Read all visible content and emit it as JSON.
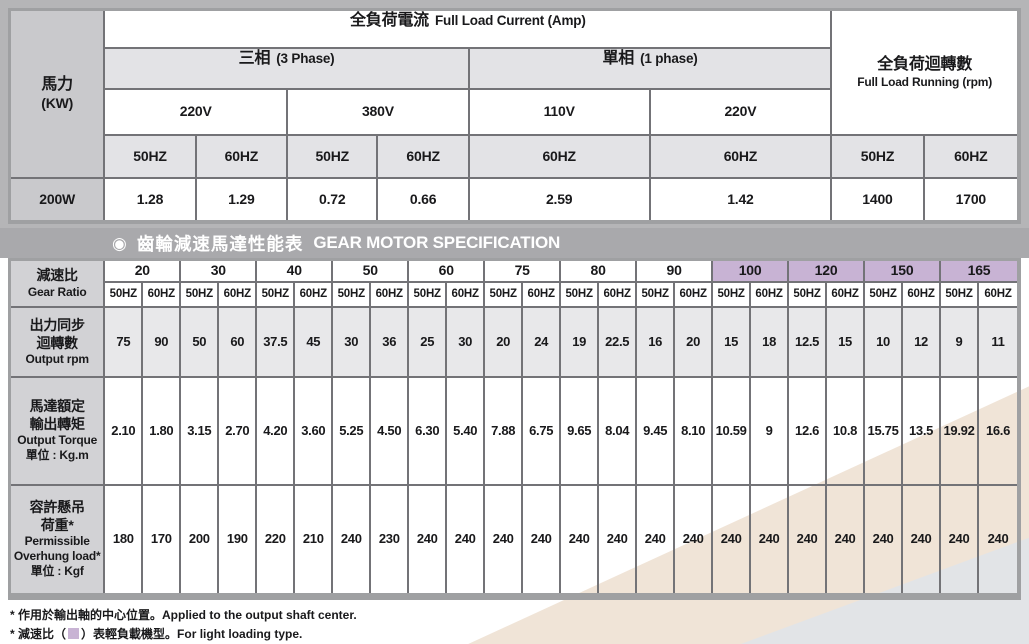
{
  "colors": {
    "purple": "#c8b3d4",
    "beige": "#f0e4d7",
    "corner_gray": "#e2e4e7",
    "banner_bg": "#a9a9ac",
    "grid_line": "#737377"
  },
  "table1": {
    "power_label_zh": "馬力",
    "power_label_en": "(KW)",
    "current_title_zh": "全負荷電流",
    "current_title_en": "Full Load Current (Amp)",
    "phase3_zh": "三相",
    "phase3_en": "(3 Phase)",
    "phase1_zh": "單相",
    "phase1_en": "(1 phase)",
    "rpm_title_zh": "全負荷迴轉數",
    "rpm_title_en": "Full Load Running (rpm)",
    "v220_3ph": "220V",
    "v380_3ph": "380V",
    "v110_1ph": "110V",
    "v220_1ph": "220V",
    "hz": [
      "50HZ",
      "60HZ",
      "50HZ",
      "60HZ",
      "60HZ",
      "60HZ",
      "50HZ",
      "60HZ"
    ],
    "row": {
      "label": "200W",
      "values": [
        "1.28",
        "1.29",
        "0.72",
        "0.66",
        "2.59",
        "1.42",
        "1400",
        "1700"
      ]
    }
  },
  "banner": {
    "bullet": "◉",
    "title_zh": "齒輪減速馬達性能表",
    "title_en": "GEAR MOTOR SPECIFICATION"
  },
  "table2": {
    "ratio_label_zh": "減速比",
    "ratio_label_en": "Gear Ratio",
    "hz_labels": [
      "50HZ",
      "60HZ"
    ],
    "ratios": [
      {
        "value": "20",
        "light": false
      },
      {
        "value": "30",
        "light": false
      },
      {
        "value": "40",
        "light": false
      },
      {
        "value": "50",
        "light": false
      },
      {
        "value": "60",
        "light": false
      },
      {
        "value": "75",
        "light": false
      },
      {
        "value": "80",
        "light": false
      },
      {
        "value": "90",
        "light": false
      },
      {
        "value": "100",
        "light": true
      },
      {
        "value": "120",
        "light": true
      },
      {
        "value": "150",
        "light": true
      },
      {
        "value": "165",
        "light": true
      }
    ],
    "rows": [
      {
        "name": "output-rpm",
        "label_lines": [
          "出力同步",
          "迴轉數",
          "Output rpm"
        ],
        "values": [
          "75",
          "90",
          "50",
          "60",
          "37.5",
          "45",
          "30",
          "36",
          "25",
          "30",
          "20",
          "24",
          "19",
          "22.5",
          "16",
          "20",
          "15",
          "18",
          "12.5",
          "15",
          "10",
          "12",
          "9",
          "11"
        ]
      },
      {
        "name": "output-torque",
        "label_lines": [
          "馬達額定",
          "輸出轉矩",
          "Output Torque",
          "單位 : Kg.m"
        ],
        "values": [
          "2.10",
          "1.80",
          "3.15",
          "2.70",
          "4.20",
          "3.60",
          "5.25",
          "4.50",
          "6.30",
          "5.40",
          "7.88",
          "6.75",
          "9.65",
          "8.04",
          "9.45",
          "8.10",
          "10.59",
          "9",
          "12.6",
          "10.8",
          "15.75",
          "13.5",
          "19.92",
          "16.6"
        ]
      },
      {
        "name": "overhung-load",
        "label_lines": [
          "容許懸吊",
          "荷重*",
          "Permissible",
          "Overhung load*",
          "單位 : Kgf"
        ],
        "values": [
          "180",
          "170",
          "200",
          "190",
          "220",
          "210",
          "240",
          "230",
          "240",
          "240",
          "240",
          "240",
          "240",
          "240",
          "240",
          "240",
          "240",
          "240",
          "240",
          "240",
          "240",
          "240",
          "240",
          "240"
        ]
      }
    ]
  },
  "footnotes": {
    "line1_zh": "* 作用於輸出軸的中心位置。",
    "line1_en": "Applied to the output shaft center.",
    "line2_pre": "* 減速比（",
    "line2_post": "）表輕負載機型。",
    "line2_en": "For light loading type."
  }
}
